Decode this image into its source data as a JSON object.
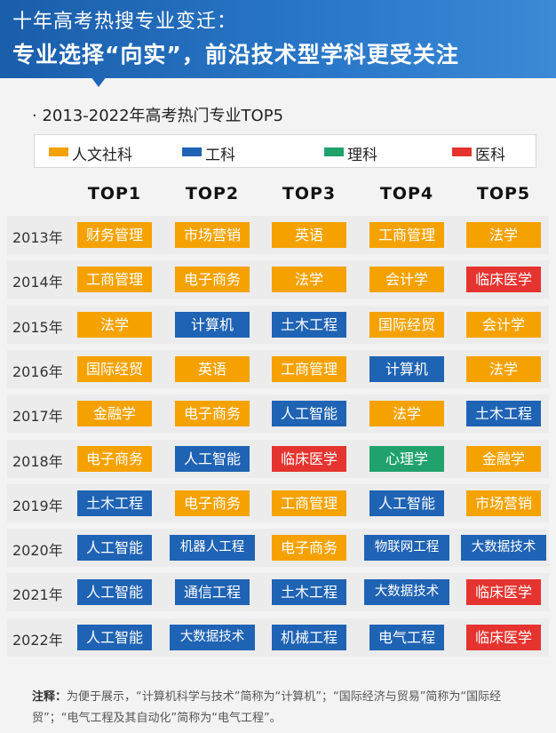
{
  "header": {
    "line1": "十年高考热搜专业变迁：",
    "line2": "专业选择“向实”，前沿技术型学科更受关注"
  },
  "subtitle": "· 2013-2022年高考热门专业TOP5",
  "legend": [
    {
      "key": "humanities",
      "label": "人文社科",
      "color": "#f5a200"
    },
    {
      "key": "engineering",
      "label": "工科",
      "color": "#1f63b4"
    },
    {
      "key": "science",
      "label": "理科",
      "color": "#21a26c"
    },
    {
      "key": "medicine",
      "label": "医科",
      "color": "#e5342f"
    }
  ],
  "chart_data": {
    "type": "table",
    "title": "2013-2022年高考热门专业TOP5",
    "columns": [
      "TOP1",
      "TOP2",
      "TOP3",
      "TOP4",
      "TOP5"
    ],
    "rows": [
      {
        "year": "2013年",
        "cells": [
          [
            "财务管理",
            "humanities"
          ],
          [
            "市场营销",
            "humanities"
          ],
          [
            "英语",
            "humanities"
          ],
          [
            "工商管理",
            "humanities"
          ],
          [
            "法学",
            "humanities"
          ]
        ]
      },
      {
        "year": "2014年",
        "cells": [
          [
            "工商管理",
            "humanities"
          ],
          [
            "电子商务",
            "humanities"
          ],
          [
            "法学",
            "humanities"
          ],
          [
            "会计学",
            "humanities"
          ],
          [
            "临床医学",
            "medicine"
          ]
        ]
      },
      {
        "year": "2015年",
        "cells": [
          [
            "法学",
            "humanities"
          ],
          [
            "计算机",
            "engineering"
          ],
          [
            "土木工程",
            "engineering"
          ],
          [
            "国际经贸",
            "humanities"
          ],
          [
            "会计学",
            "humanities"
          ]
        ]
      },
      {
        "year": "2016年",
        "cells": [
          [
            "国际经贸",
            "humanities"
          ],
          [
            "英语",
            "humanities"
          ],
          [
            "工商管理",
            "humanities"
          ],
          [
            "计算机",
            "engineering"
          ],
          [
            "法学",
            "humanities"
          ]
        ]
      },
      {
        "year": "2017年",
        "cells": [
          [
            "金融学",
            "humanities"
          ],
          [
            "电子商务",
            "humanities"
          ],
          [
            "人工智能",
            "engineering"
          ],
          [
            "法学",
            "humanities"
          ],
          [
            "土木工程",
            "engineering"
          ]
        ]
      },
      {
        "year": "2018年",
        "cells": [
          [
            "电子商务",
            "humanities"
          ],
          [
            "人工智能",
            "engineering"
          ],
          [
            "临床医学",
            "medicine"
          ],
          [
            "心理学",
            "science"
          ],
          [
            "金融学",
            "humanities"
          ]
        ]
      },
      {
        "year": "2019年",
        "cells": [
          [
            "土木工程",
            "engineering"
          ],
          [
            "电子商务",
            "humanities"
          ],
          [
            "工商管理",
            "humanities"
          ],
          [
            "人工智能",
            "engineering"
          ],
          [
            "市场营销",
            "humanities"
          ]
        ]
      },
      {
        "year": "2020年",
        "cells": [
          [
            "人工智能",
            "engineering"
          ],
          [
            "机器人工程",
            "engineering"
          ],
          [
            "电子商务",
            "humanities"
          ],
          [
            "物联网工程",
            "engineering"
          ],
          [
            "大数据技术",
            "engineering"
          ]
        ]
      },
      {
        "year": "2021年",
        "cells": [
          [
            "人工智能",
            "engineering"
          ],
          [
            "通信工程",
            "engineering"
          ],
          [
            "土木工程",
            "engineering"
          ],
          [
            "大数据技术",
            "engineering"
          ],
          [
            "临床医学",
            "medicine"
          ]
        ]
      },
      {
        "year": "2022年",
        "cells": [
          [
            "人工智能",
            "engineering"
          ],
          [
            "大数据技术",
            "engineering"
          ],
          [
            "机械工程",
            "engineering"
          ],
          [
            "电气工程",
            "engineering"
          ],
          [
            "临床医学",
            "medicine"
          ]
        ]
      }
    ]
  },
  "note": {
    "label": "注释：",
    "text": "为便于展示，“计算机科学与技术”简称为“计算机”；“国际经济与贸易”简称为“国际经贸”；“电气工程及其自动化”简称为“电气工程”。"
  }
}
